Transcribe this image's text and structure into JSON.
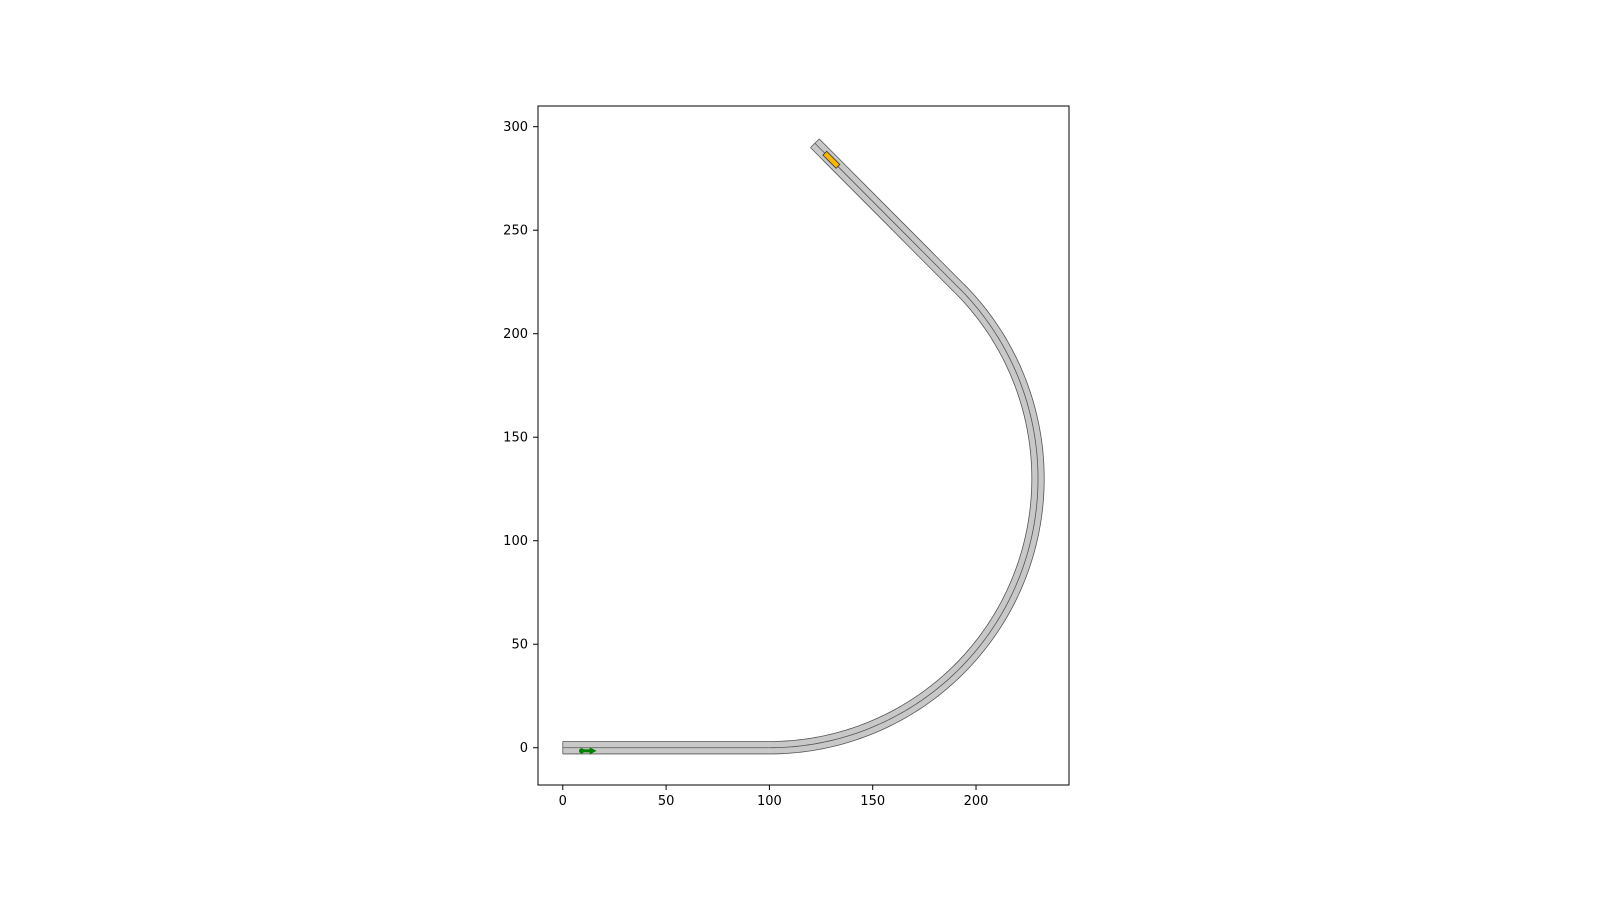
{
  "chart_data": {
    "type": "scatter",
    "title": "",
    "xlabel": "",
    "ylabel": "",
    "xlim": [
      -12,
      245
    ],
    "ylim": [
      -18,
      310
    ],
    "grid": false,
    "equal_aspect": true,
    "x_ticks": [
      0,
      50,
      100,
      150,
      200
    ],
    "y_ticks": [
      0,
      50,
      100,
      150,
      200,
      250,
      300
    ],
    "x_tick_labels": [
      "0",
      "50",
      "100",
      "150",
      "200"
    ],
    "y_tick_labels": [
      "0",
      "50",
      "100",
      "150",
      "200",
      "250",
      "300"
    ],
    "road": {
      "lane_width": 3,
      "lanes": 2,
      "fill_color": "#c8c8c8",
      "edge_color": "#555555",
      "segments": [
        {
          "kind": "straight",
          "from": [
            0,
            0
          ],
          "to": [
            100,
            0
          ]
        },
        {
          "kind": "arc",
          "center": [
            100,
            130
          ],
          "radius": 130,
          "start_deg": -90,
          "end_deg": 45
        },
        {
          "kind": "straight",
          "from": [
            191.9,
            221.9
          ],
          "to": [
            122,
            292
          ]
        }
      ]
    },
    "vehicles": [
      {
        "name": "ego",
        "x": 12,
        "y": -1.5,
        "heading_deg": 0,
        "color": "#008000",
        "shape": "arrow"
      },
      {
        "name": "other",
        "x": 130,
        "y": 284,
        "heading_deg": 135,
        "length": 9,
        "width": 2.6,
        "color": "#f5b800"
      }
    ]
  }
}
